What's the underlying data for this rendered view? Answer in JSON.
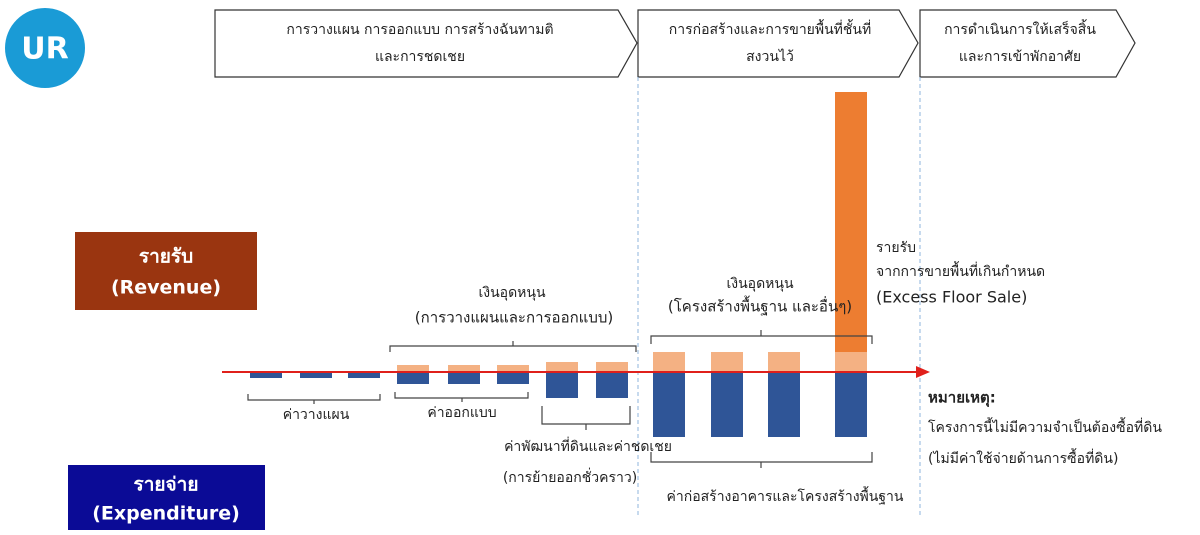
{
  "logo": "UR",
  "phases": [
    "การวางแผน การออกแบบ การสร้างฉันทามติ",
    "และการชดเชย",
    "การก่อสร้างและการขายพื้นที่ชั้นที่",
    "สงวนไว้",
    "การดำเนินการให้เสร็จสิ้น",
    "และการเข้าพักอาศัย"
  ],
  "revenue": {
    "line1": "รายรับ",
    "line2": "(Revenue)"
  },
  "expenditure": {
    "line1": "รายจ่าย",
    "line2": "(Expenditure)"
  },
  "labels": {
    "planning_cost": "ค่าวางแผน",
    "design_cost": "ค่าออกแบบ",
    "land_cost": "ค่าพัฒนาที่ดินและค่าชดเชย",
    "land_cost_note": "(การย้ายออกชั่วคราว)",
    "subsidy1": "เงินอุดหนุน",
    "subsidy1_note": "(การวางแผนและการออกแบบ)",
    "subsidy2": "เงินอุดหนุน",
    "subsidy2_note": "(โครงสร้างพื้นฐาน และอื่นๆ)",
    "construction_cost": "ค่าก่อสร้างอาคารและโครงสร้างพื้นฐาน",
    "excess1": "รายรับ",
    "excess2": "จากการขายพื้นที่เกินกำหนด",
    "excess3": "(Excess Floor Sale)"
  },
  "note": {
    "title": "หมายเหตุ:",
    "line1": "โครงการนี้ไม่มีความจำเป็นต้องซื้อที่ดิน",
    "line2": "(ไม่มีค่าใช้จ่ายด้านการซื้อที่ดิน)"
  }
}
